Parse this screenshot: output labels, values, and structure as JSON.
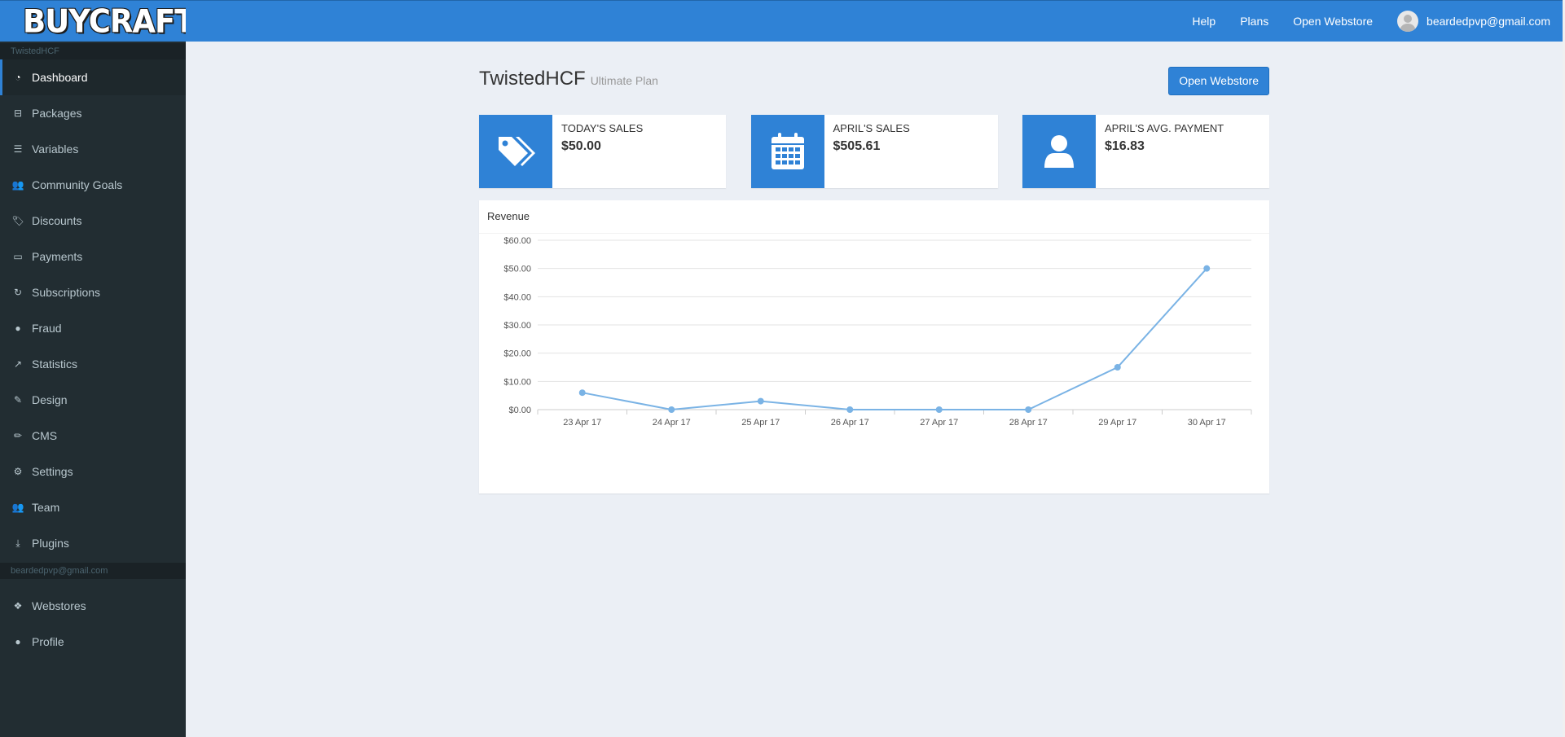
{
  "brand": {
    "logo_text": "BUYCRAFT"
  },
  "sidebar": {
    "store_section": "TwistedHCF",
    "items": [
      {
        "label": "Dashboard",
        "icon": "dashboard-icon"
      },
      {
        "label": "Packages",
        "icon": "basket-icon"
      },
      {
        "label": "Variables",
        "icon": "sliders-icon"
      },
      {
        "label": "Community Goals",
        "icon": "users-icon"
      },
      {
        "label": "Discounts",
        "icon": "tags-icon"
      },
      {
        "label": "Payments",
        "icon": "credit-card-icon"
      },
      {
        "label": "Subscriptions",
        "icon": "refresh-icon"
      },
      {
        "label": "Fraud",
        "icon": "exclamation-circle-icon"
      },
      {
        "label": "Statistics",
        "icon": "line-chart-icon"
      },
      {
        "label": "Design",
        "icon": "paint-brush-icon"
      },
      {
        "label": "CMS",
        "icon": "pencil-icon"
      },
      {
        "label": "Settings",
        "icon": "gear-icon"
      },
      {
        "label": "Team",
        "icon": "users-icon"
      },
      {
        "label": "Plugins",
        "icon": "download-icon"
      }
    ],
    "account_section": "beardedpvp@gmail.com",
    "account_items": [
      {
        "label": "Webstores",
        "icon": "cubes-icon"
      },
      {
        "label": "Profile",
        "icon": "user-icon"
      }
    ]
  },
  "topbar": {
    "help": "Help",
    "plans": "Plans",
    "open_webstore": "Open Webstore",
    "user_email": "beardedpvp@gmail.com"
  },
  "header": {
    "title": "TwistedHCF",
    "subtitle": "Ultimate Plan",
    "button": "Open Webstore"
  },
  "stats": [
    {
      "label": "TODAY'S SALES",
      "value": "$50.00",
      "icon": "tags-icon"
    },
    {
      "label": "APRIL'S SALES",
      "value": "$505.61",
      "icon": "calendar-icon"
    },
    {
      "label": "APRIL'S AVG. PAYMENT",
      "value": "$16.83",
      "icon": "user-icon"
    }
  ],
  "chart_data": {
    "type": "line",
    "title": "Revenue",
    "categories": [
      "23 Apr 17",
      "24 Apr 17",
      "25 Apr 17",
      "26 Apr 17",
      "27 Apr 17",
      "28 Apr 17",
      "29 Apr 17",
      "30 Apr 17"
    ],
    "series": [
      {
        "values": [
          6.0,
          0.0,
          3.0,
          0.0,
          0.0,
          0.0,
          15.0,
          50.0
        ]
      }
    ],
    "yticks": [
      "$0.00",
      "$10.00",
      "$20.00",
      "$30.00",
      "$40.00",
      "$50.00",
      "$60.00"
    ],
    "ylim": [
      0,
      60
    ],
    "grid": true,
    "color": "#7ab3e5"
  },
  "colors": {
    "accent": "#2f82d6",
    "sidebar_bg": "#222d32",
    "page_bg": "#ebeff5"
  }
}
